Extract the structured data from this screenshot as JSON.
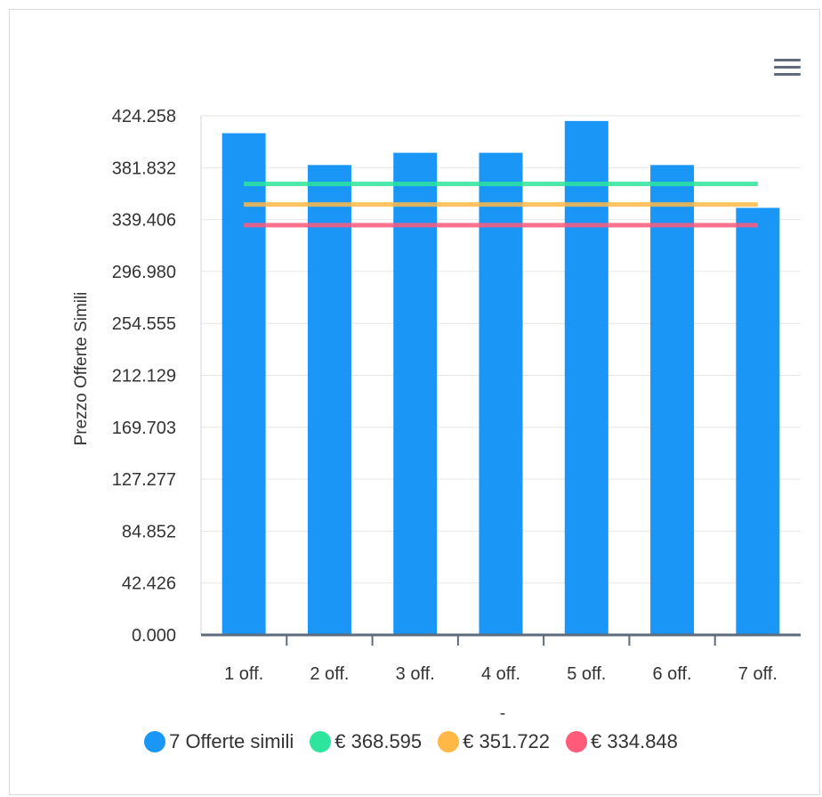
{
  "chart_data": {
    "type": "bar",
    "categories": [
      "1 off.",
      "2 off.",
      "3 off.",
      "4 off.",
      "5 off.",
      "6 off.",
      "7 off."
    ],
    "xlabel": "-",
    "ylabel": "Prezzo Offerte Simili",
    "ylim": [
      0,
      424.258
    ],
    "yticks": [
      "0.000",
      "42.426",
      "84.852",
      "127.277",
      "169.703",
      "212.129",
      "254.555",
      "296.980",
      "339.406",
      "381.832",
      "424.258"
    ],
    "grid": true,
    "legend_position": "bottom-center",
    "series": [
      {
        "name": "7 Offerte simili",
        "type": "bar",
        "color": "#1a96f6",
        "values": [
          410,
          384,
          394,
          394,
          420,
          384,
          349
        ]
      },
      {
        "name": "€ 368.595",
        "type": "line",
        "color": "#2ee59d",
        "value": 368.595
      },
      {
        "name": "€ 351.722",
        "type": "line",
        "color": "#ffb845",
        "value": 351.722
      },
      {
        "name": "€ 334.848",
        "type": "line",
        "color": "#ff5a7a",
        "value": 334.848
      }
    ]
  },
  "toolbar": {
    "menu_icon": "hamburger-menu-icon"
  }
}
